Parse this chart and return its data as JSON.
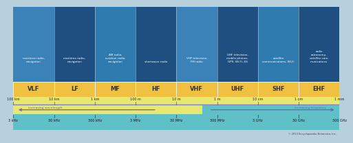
{
  "bands": [
    "VLF",
    "LF",
    "MF",
    "HF",
    "VHF",
    "UHF",
    "SHF",
    "EHF"
  ],
  "band_descriptions": [
    "maritime radio,\nnavigation",
    "maritime radio,\nnavigation",
    "AM radio,\naviation radio,\nnavigation",
    "shortwave radio",
    "VHF television,\nFM radio",
    "UHF television,\nmobile phones,\nGPS, Wi-Fi, 4G",
    "satellite\ncommunications, Wi-Fi",
    "radio\nastronomy,\nsatellite com-\nmunications"
  ],
  "wavelengths": [
    "100 km",
    "10 km",
    "1 km",
    "100 m",
    "10 m",
    "1 m",
    "10 cm",
    "1 cm",
    "1 mm"
  ],
  "frequencies": [
    "3 kHz",
    "30 kHz",
    "300 kHz",
    "3 MHz",
    "30 MHz",
    "300 MHz",
    "3 GHz",
    "30 GHz",
    "300 GHz"
  ],
  "top_colors": [
    "#3a82b8",
    "#1e4f80",
    "#2f7bb0",
    "#1e4f80",
    "#3a82b8",
    "#1e4f80",
    "#2f7bb0",
    "#1e4f80"
  ],
  "band_bar_color": "#f0c040",
  "band_bar_edge": "#ffffff",
  "wavelength_bar_color": "#e8e870",
  "wavelength_divider_color": "#8080c0",
  "freq_bar_color": "#60c0c8",
  "freq_values_bar_color": "#60c0c8",
  "copyright_text": "© 2013 Encyclopaedia Britannica, Inc.",
  "fig_width": 4.74,
  "fig_height": 1.88,
  "desc_text_color": "#ffffff",
  "band_label_color": "#333333",
  "wl_text_color": "#222222",
  "freq_text_color": "#111111",
  "arrow_color": "#7060b0",
  "freq_arrow_color": "#7060b0"
}
